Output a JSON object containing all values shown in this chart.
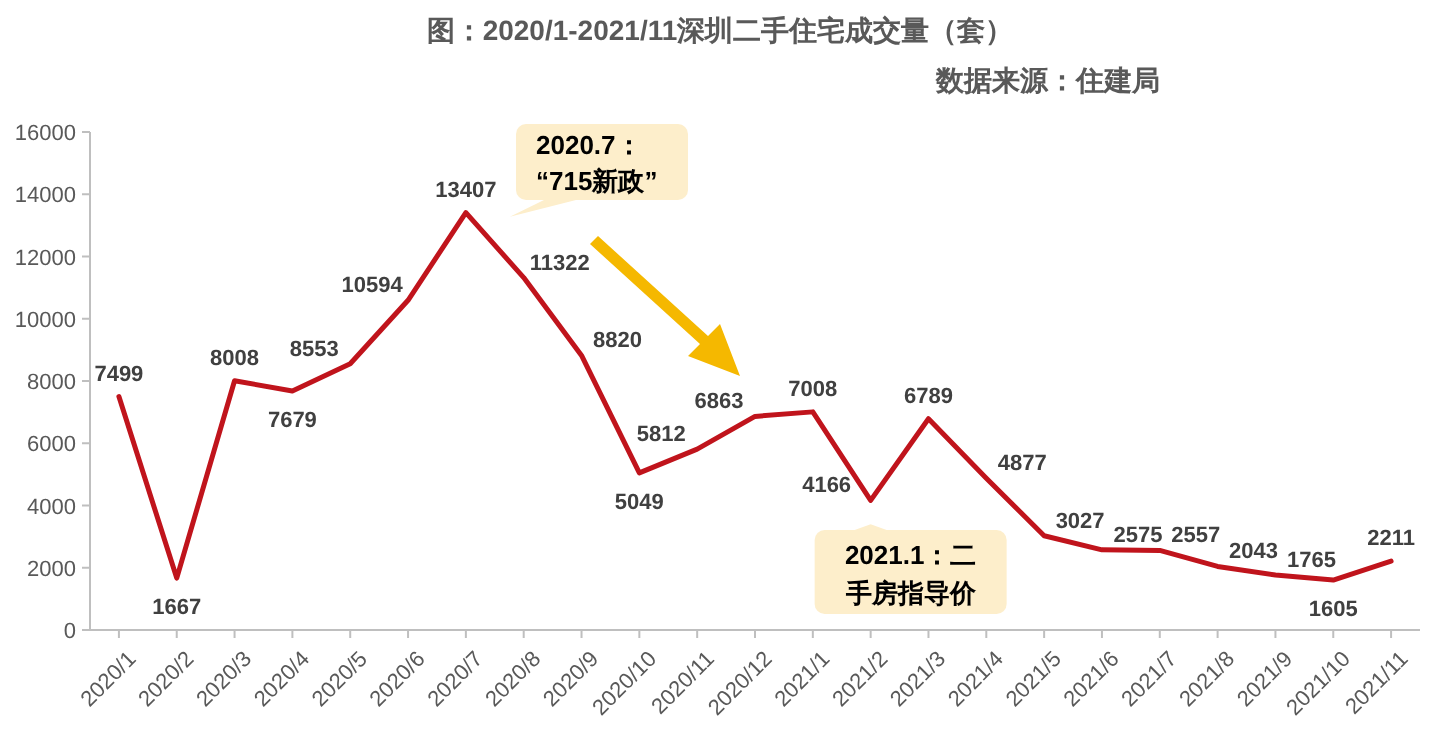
{
  "chart_data": {
    "type": "line",
    "title": "图：2020/1-2021/11深圳二手住宅成交量（套）",
    "annotations": [
      "数据来源：住建局",
      {
        "text": "2020.7：“715新政”",
        "x": "2020/7",
        "y": 13407
      },
      {
        "text": "2021.1：二手房指导价",
        "x": "2021/2",
        "y": 4166
      }
    ],
    "categories": [
      "2020/1",
      "2020/2",
      "2020/3",
      "2020/4",
      "2020/5",
      "2020/6",
      "2020/7",
      "2020/8",
      "2020/9",
      "2020/10",
      "2020/11",
      "2020/12",
      "2021/1",
      "2021/2",
      "2021/3",
      "2021/4",
      "2021/5",
      "2021/6",
      "2021/7",
      "2021/8",
      "2021/9",
      "2021/10",
      "2021/11"
    ],
    "series": [
      {
        "color": "#c0141c",
        "values": [
          7499,
          1667,
          8008,
          7679,
          8553,
          10594,
          13407,
          11322,
          8820,
          5049,
          5812,
          6863,
          7008,
          4166,
          6789,
          4877,
          3027,
          2575,
          2557,
          2043,
          1765,
          1605,
          2211
        ]
      }
    ],
    "ylim": [
      0,
      16000
    ],
    "yticks": [
      0,
      2000,
      4000,
      6000,
      8000,
      10000,
      12000,
      14000,
      16000
    ],
    "data_labels": true,
    "grid": false,
    "marker": "none",
    "line_style": "solid"
  }
}
